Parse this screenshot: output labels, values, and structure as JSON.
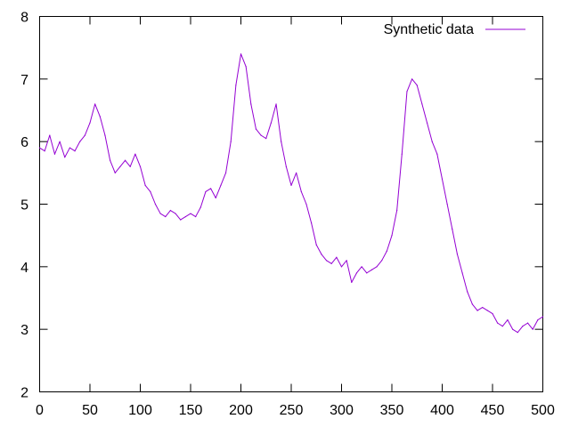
{
  "chart_data": {
    "type": "line",
    "title": "",
    "xlabel": "",
    "ylabel": "",
    "xlim": [
      0,
      500
    ],
    "ylim": [
      2,
      8
    ],
    "x_ticks": [
      0,
      50,
      100,
      150,
      200,
      250,
      300,
      350,
      400,
      450,
      500
    ],
    "y_ticks": [
      2,
      3,
      4,
      5,
      6,
      7,
      8
    ],
    "grid": false,
    "legend_position": "top-right",
    "series": [
      {
        "name": "Synthetic data",
        "color": "#9400d3",
        "x": [
          0,
          5,
          10,
          15,
          20,
          25,
          30,
          35,
          40,
          45,
          50,
          55,
          60,
          65,
          70,
          75,
          80,
          85,
          90,
          95,
          100,
          105,
          110,
          115,
          120,
          125,
          130,
          135,
          140,
          145,
          150,
          155,
          160,
          165,
          170,
          175,
          180,
          185,
          190,
          195,
          200,
          205,
          210,
          215,
          220,
          225,
          230,
          235,
          240,
          245,
          250,
          255,
          260,
          265,
          270,
          275,
          280,
          285,
          290,
          295,
          300,
          305,
          310,
          315,
          320,
          325,
          330,
          335,
          340,
          345,
          350,
          355,
          360,
          365,
          370,
          375,
          380,
          385,
          390,
          395,
          400,
          405,
          410,
          415,
          420,
          425,
          430,
          435,
          440,
          445,
          450,
          455,
          460,
          465,
          470,
          475,
          480,
          485,
          490,
          495,
          500
        ],
        "values": [
          5.9,
          5.85,
          6.1,
          5.8,
          6.0,
          5.75,
          5.9,
          5.85,
          6.0,
          6.1,
          6.3,
          6.6,
          6.4,
          6.1,
          5.7,
          5.5,
          5.6,
          5.7,
          5.6,
          5.8,
          5.6,
          5.3,
          5.2,
          5.0,
          4.85,
          4.8,
          4.9,
          4.85,
          4.75,
          4.8,
          4.85,
          4.8,
          4.95,
          5.2,
          5.25,
          5.1,
          5.3,
          5.5,
          6.0,
          6.9,
          7.4,
          7.2,
          6.6,
          6.2,
          6.1,
          6.05,
          6.3,
          6.6,
          6.0,
          5.6,
          5.3,
          5.5,
          5.2,
          5.0,
          4.7,
          4.35,
          4.2,
          4.1,
          4.05,
          4.15,
          4.0,
          4.1,
          3.75,
          3.9,
          4.0,
          3.9,
          3.95,
          4.0,
          4.1,
          4.25,
          4.5,
          4.9,
          5.8,
          6.8,
          7.0,
          6.9,
          6.6,
          6.3,
          6.0,
          5.8,
          5.4,
          5.0,
          4.6,
          4.2,
          3.9,
          3.6,
          3.4,
          3.3,
          3.35,
          3.3,
          3.25,
          3.1,
          3.05,
          3.15,
          3.0,
          2.95,
          3.05,
          3.1,
          3.0,
          3.15,
          3.2
        ]
      }
    ]
  }
}
